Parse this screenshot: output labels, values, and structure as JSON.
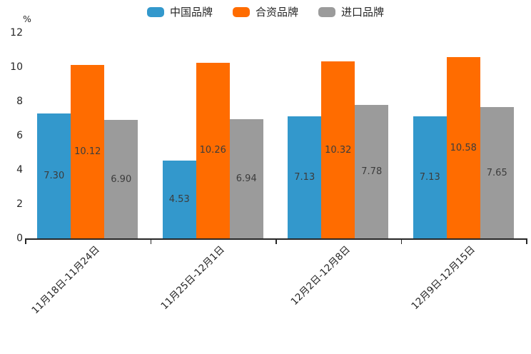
{
  "chart_data": {
    "type": "bar",
    "title": "",
    "unit_label": "%",
    "categories": [
      "11月18日-11月24日",
      "11月25日-12月1日",
      "12月2日-12月8日",
      "12月9日-12月15日"
    ],
    "series": [
      {
        "name": "中国品牌",
        "color": "#3398cc",
        "values": [
          7.3,
          4.53,
          7.13,
          7.13
        ]
      },
      {
        "name": "合资品牌",
        "color": "#ff6c00",
        "values": [
          10.12,
          10.26,
          10.32,
          10.58
        ]
      },
      {
        "name": "进口品牌",
        "color": "#9b9b9b",
        "values": [
          6.9,
          6.94,
          7.78,
          7.65
        ]
      }
    ],
    "value_label_decimals": 2,
    "yticks": [
      0,
      2,
      4,
      6,
      8,
      10,
      12
    ],
    "ylim": [
      0,
      12
    ],
    "grid": false,
    "legend_position": "top-center",
    "legend_marker": "round-rect",
    "xlabel_rotation_deg": 45,
    "axis_color": "#262626",
    "value_label_color": "#3c3c3c",
    "background_color": "#ffffff"
  }
}
